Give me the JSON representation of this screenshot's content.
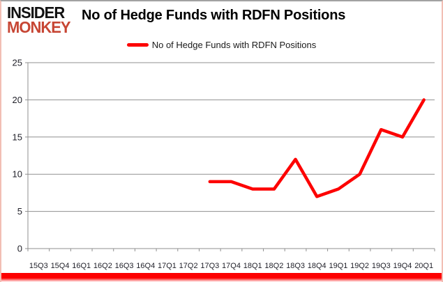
{
  "logo": {
    "line1": "INSIDER",
    "line2": "MONKEY"
  },
  "header": {
    "title": "No of Hedge Funds with RDFN Positions"
  },
  "legend": {
    "label": "No of Hedge Funds with RDFN Positions"
  },
  "colors": {
    "series_red": "#fd0000",
    "logo_red": "#c74634",
    "gridline_gray": "#8f8f8f",
    "axis_gray": "#8f8f8f",
    "tick_text": "#1f1f28",
    "accent_bar_red": "#fd0000"
  },
  "chart_data": {
    "type": "line",
    "title": "No of Hedge Funds with RDFN Positions",
    "categories": [
      "15Q3",
      "15Q4",
      "16Q1",
      "16Q2",
      "16Q3",
      "16Q4",
      "17Q1",
      "17Q2",
      "17Q3",
      "17Q4",
      "18Q1",
      "18Q2",
      "18Q3",
      "18Q4",
      "19Q1",
      "19Q2",
      "19Q3",
      "19Q4",
      "20Q1"
    ],
    "series": [
      {
        "name": "No of Hedge Funds with RDFN Positions",
        "color": "#fd0000",
        "values": [
          null,
          null,
          null,
          null,
          null,
          null,
          null,
          null,
          9,
          9,
          8,
          8,
          12,
          7,
          8,
          10,
          16,
          15,
          20
        ]
      }
    ],
    "xlabel": "",
    "ylabel": "",
    "ylim": [
      0,
      25
    ],
    "yticks": [
      0,
      5,
      10,
      15,
      20,
      25
    ],
    "grid": true,
    "legend_position": "top-center"
  }
}
